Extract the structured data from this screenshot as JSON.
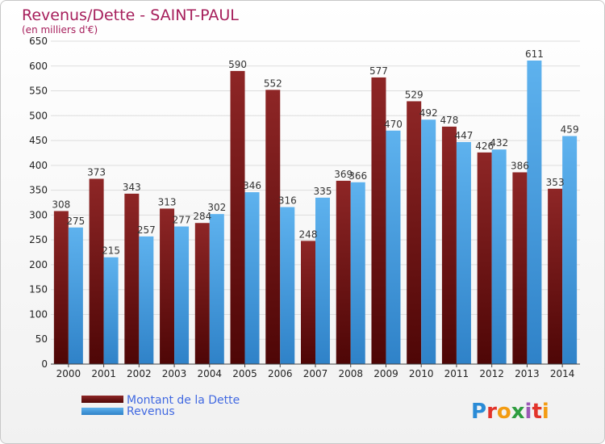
{
  "colors": {
    "dette": "#7b1a1a",
    "revenus": "#4a9fe0",
    "title": "#a61e5b",
    "legend_text": "#4169e1"
  },
  "logo": {
    "text": "Proxiti",
    "letter_colors": [
      "#2a8bd6",
      "#e2342b",
      "#f39c12",
      "#2e9d3f",
      "#9b59b6",
      "#e2342b",
      "#f39c12"
    ]
  },
  "chart_data": {
    "type": "bar",
    "title": "Revenus/Dette - SAINT-PAUL",
    "subtitle": "(en milliers d'€)",
    "categories": [
      "2000",
      "2001",
      "2002",
      "2003",
      "2004",
      "2005",
      "2006",
      "2007",
      "2008",
      "2009",
      "2010",
      "2011",
      "2012",
      "2013",
      "2014"
    ],
    "series": [
      {
        "name": "Montant de la Dette",
        "values": [
          308,
          373,
          343,
          313,
          284,
          590,
          552,
          248,
          369,
          577,
          529,
          478,
          426,
          386,
          353
        ]
      },
      {
        "name": "Revenus",
        "values": [
          275,
          215,
          257,
          277,
          302,
          346,
          316,
          335,
          366,
          470,
          492,
          447,
          432,
          611,
          459
        ]
      }
    ],
    "ylim": [
      0,
      650
    ],
    "yticks": [
      0,
      50,
      100,
      150,
      200,
      250,
      300,
      350,
      400,
      450,
      500,
      550,
      600,
      650
    ],
    "grid": true,
    "legend_position": "bottom-left"
  }
}
